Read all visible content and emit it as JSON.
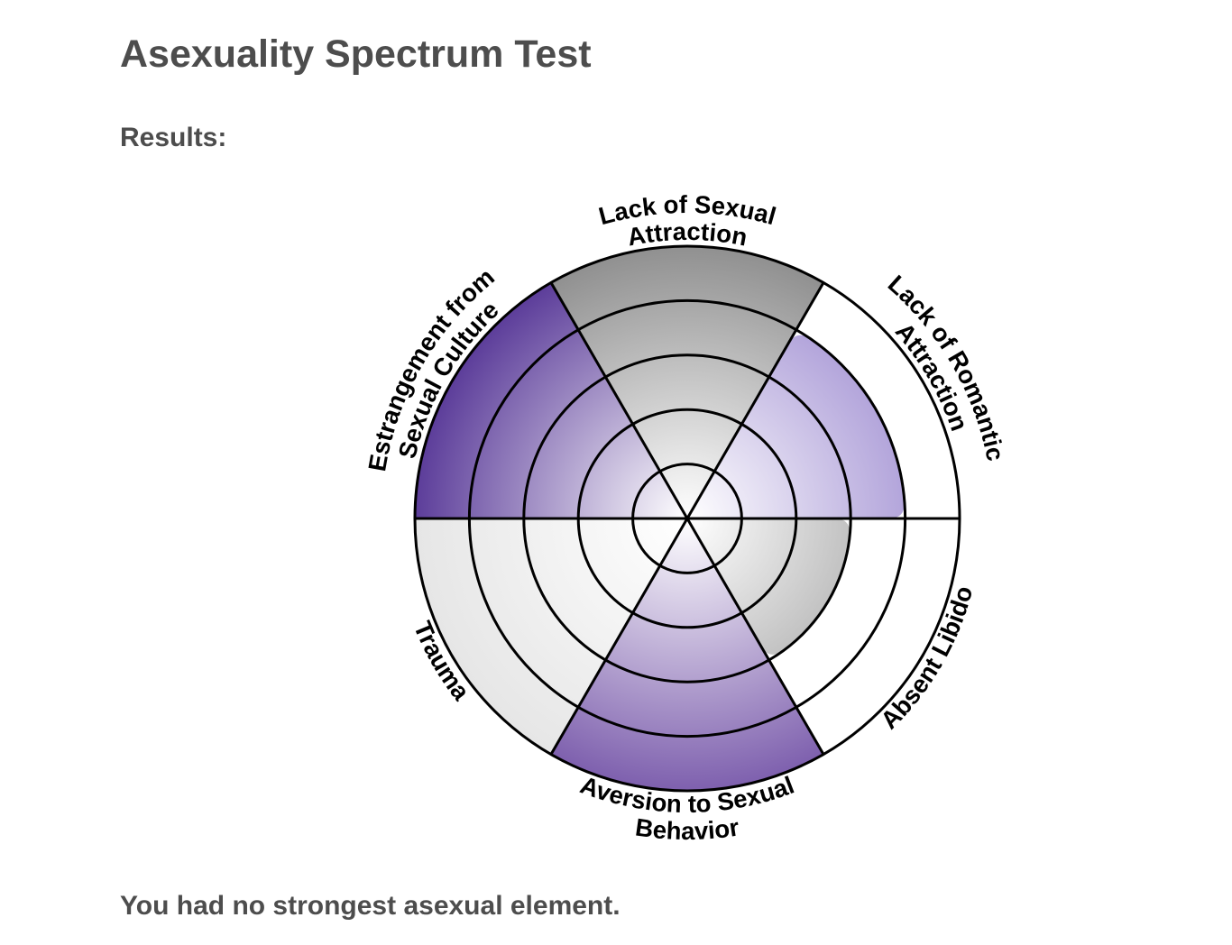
{
  "page": {
    "title": "Asexuality Spectrum Test",
    "results_label": "Results:",
    "summary": "You had no strongest asexual element.",
    "text_color": "#4d4d4d",
    "background": "#ffffff"
  },
  "chart_data": {
    "type": "polar_area",
    "title": "",
    "legend_position": "none",
    "grid": true,
    "grid_color": "#000000",
    "grid_stroke_width": 3,
    "center_fill": "#ffffff",
    "label_color": "#000000",
    "max_value": 5,
    "ring_count": 5,
    "start_angle_deg": 90,
    "sector_width_deg": 60,
    "direction": "clockwise",
    "categories": [
      "Lack of Sexual Attraction",
      "Lack of Romantic Attraction",
      "Absent Libido",
      "Aversion to Sexual Behavior",
      "Trauma",
      "Estrangement from Sexual Culture"
    ],
    "label_lines": [
      [
        "Lack of Sexual",
        "Attraction"
      ],
      [
        "Lack of Romantic",
        "Attraction"
      ],
      [
        "Absent Libido"
      ],
      [
        "Aversion to Sexual",
        "Behavior"
      ],
      [
        "Trauma"
      ],
      [
        "Estrangement from",
        "Sexual Culture"
      ]
    ],
    "values": [
      5,
      4,
      3,
      5,
      5,
      5
    ],
    "colors": [
      "#909090",
      "#b3a5db",
      "#c2c2c2",
      "#7e60ae",
      "#e6e6e6",
      "#5c3d9a"
    ]
  }
}
